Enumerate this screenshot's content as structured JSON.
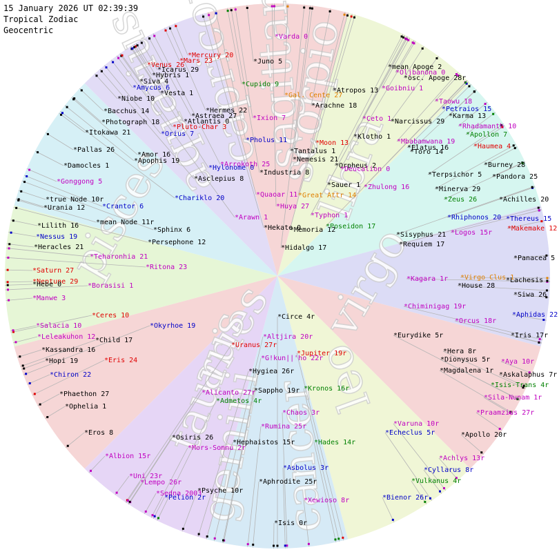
{
  "header": {
    "date_line": "15 January 2026 UT 02:39:39",
    "zodiac_line": "Tropical Zodiac",
    "mode_line": "Geocentric"
  },
  "signs": [
    "aries",
    "taurus",
    "gemini",
    "cancer",
    "leo",
    "virgo",
    "libra",
    "scorpio",
    "sagittarius",
    "capricorn",
    "aquarius",
    "pisces"
  ],
  "sign_colors": [
    "#f6d6d6",
    "#e6f6d6",
    "#d6f0f6",
    "#e2dcf6",
    "#f6d6d6",
    "#eef6d6",
    "#d6f6f0",
    "#dcdcf6",
    "#f6d6d6",
    "#f0f6d6",
    "#d6eaf6",
    "#e6d6f6"
  ],
  "label_colors": {
    "black": "#000000",
    "red": "#e00000",
    "blue": "#0000c8",
    "magenta": "#c000c0",
    "green": "#008000",
    "orange": "#e08000"
  },
  "bodies": [
    {
      "name": "*Varda  0",
      "color": "magenta"
    },
    {
      "name": "*Mercury 20",
      "color": "red"
    },
    {
      "name": "*Mars 23",
      "color": "red"
    },
    {
      "name": "*Venus 26",
      "color": "red"
    },
    {
      "name": "*Icarus 29",
      "color": "black"
    },
    {
      "name": "*Hybris 1",
      "color": "black"
    },
    {
      "name": "*Siva  4",
      "color": "black"
    },
    {
      "name": "*Amycus  6",
      "color": "blue"
    },
    {
      "name": "*Vesta  1",
      "color": "black"
    },
    {
      "name": "*Juno  5",
      "color": "black"
    },
    {
      "name": "*Cupido  9",
      "color": "green"
    },
    {
      "name": "*Gal. Cente 27",
      "color": "orange"
    },
    {
      "name": "*Atropos 13",
      "color": "black"
    },
    {
      "name": "*mean Apoge  2",
      "color": "black"
    },
    {
      "name": "*Oljbanona  0",
      "color": "magenta"
    },
    {
      "name": "*osc. Apoge 28r",
      "color": "black"
    },
    {
      "name": "*Goibniu  1",
      "color": "magenta"
    },
    {
      "name": "*Niobe 10",
      "color": "black"
    },
    {
      "name": "*Arachne 18",
      "color": "black"
    },
    {
      "name": "*Taowu 18",
      "color": "magenta"
    },
    {
      "name": "*Petraios 15",
      "color": "blue"
    },
    {
      "name": "*Bacchus 14",
      "color": "black"
    },
    {
      "name": "*Hermes 22",
      "color": "black"
    },
    {
      "name": "*Astraea 27",
      "color": "black"
    },
    {
      "name": "*Atlantis  0",
      "color": "black"
    },
    {
      "name": "*Pluto-Char  3",
      "color": "red"
    },
    {
      "name": "*Photograph 18",
      "color": "black"
    },
    {
      "name": "*Ixion  7",
      "color": "magenta"
    },
    {
      "name": "*Ceto  1",
      "color": "magenta"
    },
    {
      "name": "*Narcissus 29",
      "color": "black"
    },
    {
      "name": "*Karma 13",
      "color": "black"
    },
    {
      "name": "*Rhadamanth 10",
      "color": "magenta"
    },
    {
      "name": "*Apollon  7",
      "color": "green"
    },
    {
      "name": "*Itokawa 21",
      "color": "black"
    },
    {
      "name": "*Orius  7",
      "color": "blue"
    },
    {
      "name": "*Pholus 11",
      "color": "blue"
    },
    {
      "name": "*Moon 13",
      "color": "red"
    },
    {
      "name": "*Klotho  1",
      "color": "black"
    },
    {
      "name": "*Mbabamwana 19",
      "color": "magenta"
    },
    {
      "name": "*Haumea  4",
      "color": "red"
    },
    {
      "name": "*Elatus 16",
      "color": "black"
    },
    {
      "name": "*Toro 14",
      "color": "black"
    },
    {
      "name": "*Pallas 26",
      "color": "black"
    },
    {
      "name": "*Tantalus  1",
      "color": "black"
    },
    {
      "name": "*Amor 16",
      "color": "black"
    },
    {
      "name": "*Nemesis 21",
      "color": "black"
    },
    {
      "name": "*Apophis 19",
      "color": "black"
    },
    {
      "name": "*Arrokoth 25",
      "color": "magenta"
    },
    {
      "name": "*Orpheus  2",
      "color": "black"
    },
    {
      "name": "*Burney 28",
      "color": "black"
    },
    {
      "name": "*Damocles  1",
      "color": "black"
    },
    {
      "name": "*Hylonome  0",
      "color": "blue"
    },
    {
      "name": "*Deucalion  0",
      "color": "magenta"
    },
    {
      "name": "*Industria  8",
      "color": "black"
    },
    {
      "name": "*Terpsichor  5",
      "color": "black"
    },
    {
      "name": "*Pandora 25",
      "color": "black"
    },
    {
      "name": "*Asclepius  8",
      "color": "black"
    },
    {
      "name": "*Gonggong  5",
      "color": "magenta"
    },
    {
      "name": "*Sauer  1",
      "color": "black"
    },
    {
      "name": "*Zhulong 16",
      "color": "magenta"
    },
    {
      "name": "*Minerva 29",
      "color": "black"
    },
    {
      "name": "*Quaoar 11",
      "color": "magenta"
    },
    {
      "name": "*Great Attr 14",
      "color": "orange"
    },
    {
      "name": "*Chariklo 20",
      "color": "blue"
    },
    {
      "name": "*true Node 10r",
      "color": "black"
    },
    {
      "name": "*Zeus 26",
      "color": "green"
    },
    {
      "name": "*Achilles 20",
      "color": "black"
    },
    {
      "name": "*Urania 12",
      "color": "black"
    },
    {
      "name": "*Crantor  6",
      "color": "blue"
    },
    {
      "name": "*Huya 27",
      "color": "magenta"
    },
    {
      "name": "*Arawn  1",
      "color": "magenta"
    },
    {
      "name": "*Typhon  1",
      "color": "magenta"
    },
    {
      "name": "*Rhiphonos 20",
      "color": "blue"
    },
    {
      "name": "*Thereus 15",
      "color": "blue"
    },
    {
      "name": "*mean Node 11r",
      "color": "black"
    },
    {
      "name": "*Makemake 12",
      "color": "red"
    },
    {
      "name": "*Lilith 16",
      "color": "black"
    },
    {
      "name": "*Hekate 0",
      "color": "black"
    },
    {
      "name": "*Memoria 12",
      "color": "black"
    },
    {
      "name": "*Poseidon 17",
      "color": "green"
    },
    {
      "name": "*Sphinx  6",
      "color": "black"
    },
    {
      "name": "*Logos 15r",
      "color": "magenta"
    },
    {
      "name": "*Nessus 19",
      "color": "blue"
    },
    {
      "name": "*Sisyphus 21",
      "color": "black"
    },
    {
      "name": "*Persephone 12",
      "color": "black"
    },
    {
      "name": "*Requiem 17",
      "color": "black"
    },
    {
      "name": "*Heracles 21",
      "color": "black"
    },
    {
      "name": "*Hidalgo 17",
      "color": "black"
    },
    {
      "name": "*Teharonhia 21",
      "color": "magenta"
    },
    {
      "name": "*Panacea  5",
      "color": "black"
    },
    {
      "name": "*Ritona 23",
      "color": "magenta"
    },
    {
      "name": "*Saturn 27",
      "color": "red"
    },
    {
      "name": "*Kagara  1r",
      "color": "magenta"
    },
    {
      "name": "*Virgo Clus  1",
      "color": "orange"
    },
    {
      "name": "*Lachesis",
      "color": "black"
    },
    {
      "name": "*Neptune 29",
      "color": "red"
    },
    {
      "name": "*Hebe  0",
      "color": "black"
    },
    {
      "name": "*Borasisi  1",
      "color": "magenta"
    },
    {
      "name": "*House 28",
      "color": "black"
    },
    {
      "name": "*Manwe  3",
      "color": "magenta"
    },
    {
      "name": "*Siwa 26",
      "color": "black"
    },
    {
      "name": "*Chiminigag 19r",
      "color": "magenta"
    },
    {
      "name": "*Aphidas 22",
      "color": "blue"
    },
    {
      "name": "*Ceres 10",
      "color": "red"
    },
    {
      "name": "*Circe  4r",
      "color": "black"
    },
    {
      "name": "*Orcus 18r",
      "color": "magenta"
    },
    {
      "name": "*Salacia 10",
      "color": "magenta"
    },
    {
      "name": "*Okyrhoe 19",
      "color": "blue"
    },
    {
      "name": "*Altjira 20r",
      "color": "magenta"
    },
    {
      "name": "*Eurydike  5r",
      "color": "black"
    },
    {
      "name": "*Iris 17r",
      "color": "black"
    },
    {
      "name": "*Leleakuhon 12",
      "color": "magenta"
    },
    {
      "name": "*Child 17",
      "color": "black"
    },
    {
      "name": "*Uranus 27r",
      "color": "red"
    },
    {
      "name": "*Kassandra 16",
      "color": "black"
    },
    {
      "name": "*Jupiter 19r",
      "color": "red"
    },
    {
      "name": "*Hera  8r",
      "color": "black"
    },
    {
      "name": "*Hopi 19",
      "color": "black"
    },
    {
      "name": "*Eris 24",
      "color": "red"
    },
    {
      "name": "*G!kun||'ho 22r",
      "color": "magenta"
    },
    {
      "name": "*Dionysus  5r",
      "color": "black"
    },
    {
      "name": "*Aya 10r",
      "color": "magenta"
    },
    {
      "name": "*Hygiea 26r",
      "color": "black"
    },
    {
      "name": "*Magdalena  1r",
      "color": "black"
    },
    {
      "name": "*Askalaphus  7r",
      "color": "black"
    },
    {
      "name": "*Chiron 22",
      "color": "blue"
    },
    {
      "name": "*Isis-Trans  4r",
      "color": "green"
    },
    {
      "name": "*Kronos 16r",
      "color": "green"
    },
    {
      "name": "*Alicanto 27r",
      "color": "magenta"
    },
    {
      "name": "*Sappho 19r",
      "color": "black"
    },
    {
      "name": "*Phaethon 27",
      "color": "black"
    },
    {
      "name": "*Sila-Nunam  1r",
      "color": "magenta"
    },
    {
      "name": "*Admetos  4r",
      "color": "green"
    },
    {
      "name": "*Ophelia  1",
      "color": "black"
    },
    {
      "name": "*Chaos  3r",
      "color": "magenta"
    },
    {
      "name": "*Praamzius 27r",
      "color": "magenta"
    },
    {
      "name": "*Rumina 25r",
      "color": "magenta"
    },
    {
      "name": "*Varuna 10r",
      "color": "magenta"
    },
    {
      "name": "*Eros  8",
      "color": "black"
    },
    {
      "name": "*Echeclus  5r",
      "color": "blue"
    },
    {
      "name": "*Apollo 20r",
      "color": "black"
    },
    {
      "name": "*Osiris 26",
      "color": "black"
    },
    {
      "name": "*Hephaistos 15r",
      "color": "black"
    },
    {
      "name": "*Hades 14r",
      "color": "green"
    },
    {
      "name": "*Mors-Somnu  2r",
      "color": "magenta"
    },
    {
      "name": "*Albion 15r",
      "color": "magenta"
    },
    {
      "name": "*Achlys 13r",
      "color": "magenta"
    },
    {
      "name": "*Asbolus  3r",
      "color": "blue"
    },
    {
      "name": "*Cyllarus  8r",
      "color": "blue"
    },
    {
      "name": "*Uni 23r",
      "color": "magenta"
    },
    {
      "name": "*Aphrodite 25r",
      "color": "black"
    },
    {
      "name": "*Lempo 26r",
      "color": "magenta"
    },
    {
      "name": "*Vulkanus  4r",
      "color": "green"
    },
    {
      "name": "*Psyche 10r",
      "color": "black"
    },
    {
      "name": "*Sedna 2003",
      "color": "magenta"
    },
    {
      "name": "*Pelion  2r",
      "color": "blue"
    },
    {
      "name": "*Xewioso  8r",
      "color": "magenta"
    },
    {
      "name": "*Bienor 26r",
      "color": "blue"
    },
    {
      "name": "*Isis  0r",
      "color": "black"
    }
  ]
}
